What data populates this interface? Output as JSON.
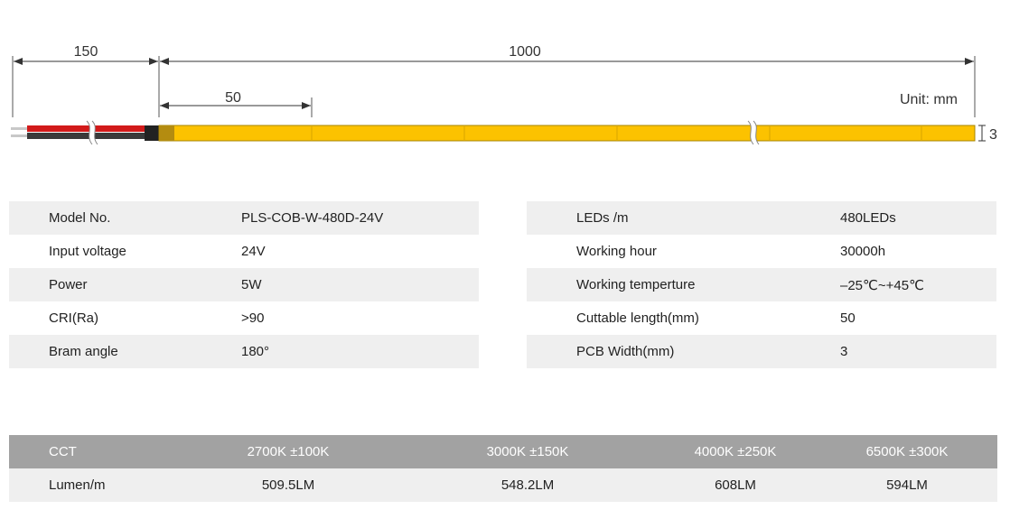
{
  "drawing": {
    "dim_wire": "150",
    "dim_strip": "1000",
    "dim_cut": "50",
    "unit": "Unit: mm",
    "dim_width": "3",
    "colors": {
      "strip": "#fcc200",
      "strip_end": "#b48c10",
      "wire_red": "#d21a1a",
      "wire_black": "#3a3a3a"
    }
  },
  "specs_left": [
    {
      "label": "Model No.",
      "value": "PLS-COB-W-480D-24V"
    },
    {
      "label": "Input voltage",
      "value": "24V"
    },
    {
      "label": "Power",
      "value": "5W"
    },
    {
      "label": "CRI(Ra)",
      "value": ">90"
    },
    {
      "label": "Bram angle",
      "value": "180°"
    }
  ],
  "specs_right": [
    {
      "label": "LEDs /m",
      "value": "480LEDs"
    },
    {
      "label": "Working hour",
      "value": "30000h"
    },
    {
      "label": "Working temperture",
      "value": "–25℃~+45℃"
    },
    {
      "label": "Cuttable length(mm)",
      "value": "50"
    },
    {
      "label": "PCB Width(mm)",
      "value": "3"
    }
  ],
  "cct_table": {
    "header": [
      "CCT",
      "2700K ±100K",
      "3000K ±150K",
      "4000K ±250K",
      "6500K ±300K"
    ],
    "row": [
      "Lumen/m",
      "509.5LM",
      "548.2LM",
      "608LM",
      "594LM"
    ]
  }
}
